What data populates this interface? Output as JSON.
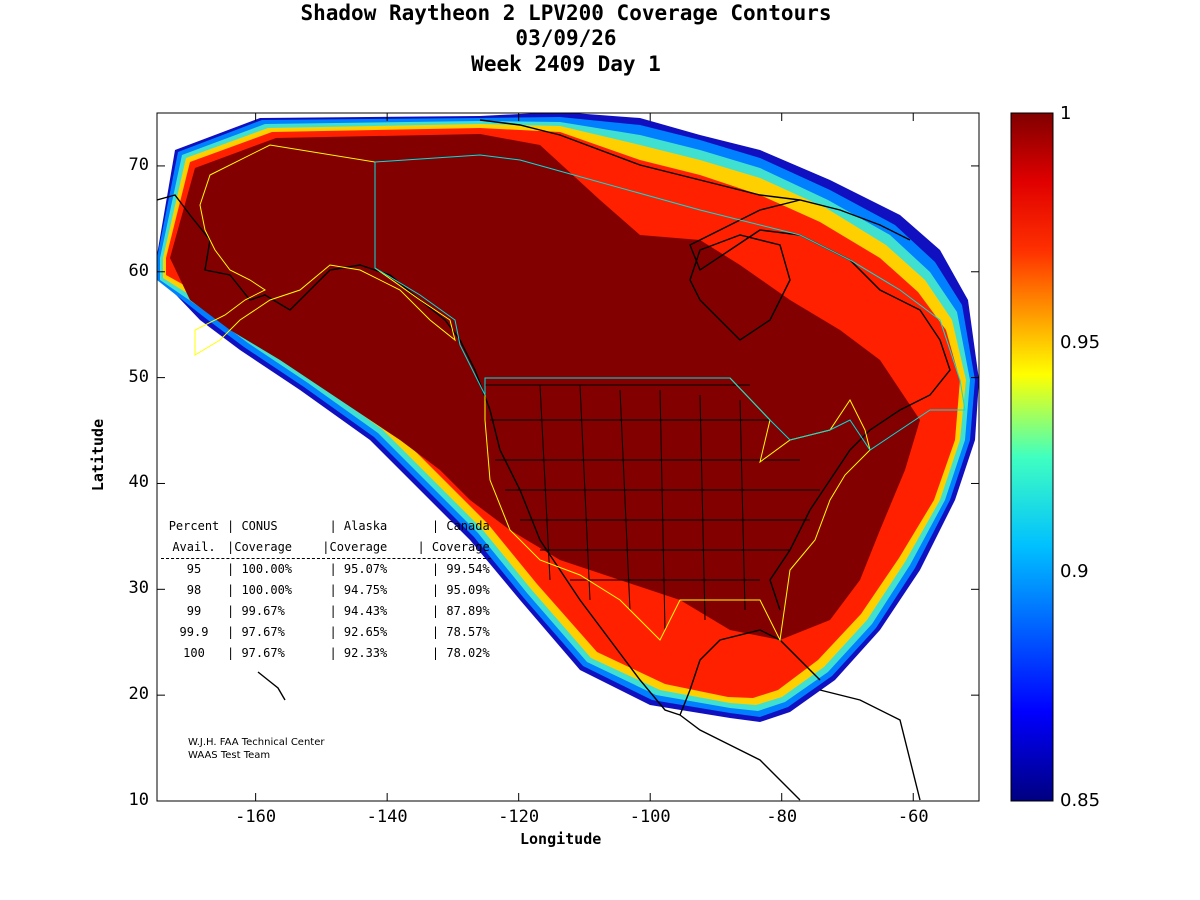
{
  "title": {
    "line1": "Shadow Raytheon 2 LPV200 Coverage Contours",
    "line2": "03/09/26",
    "line3": "Week 2409 Day 1"
  },
  "axes": {
    "xlabel": "Longitude",
    "ylabel": "Latitude",
    "lon_range": [
      -175,
      -50
    ],
    "lat_range": [
      10,
      75
    ],
    "x_ticks": [
      "-160",
      "-140",
      "-120",
      "-100",
      "-80",
      "-60"
    ],
    "y_ticks": [
      "10",
      "20",
      "30",
      "40",
      "50",
      "60",
      "70"
    ]
  },
  "colorbar": {
    "min": 0.85,
    "max": 1,
    "ticks": [
      "1",
      "0.95",
      "0.9",
      "0.85"
    ],
    "colors": [
      "#000080",
      "#0000ff",
      "#00ffff",
      "#ffff00",
      "#ff0000",
      "#800000"
    ]
  },
  "stats_table": {
    "header1": [
      "Percent",
      "CONUS",
      "Alaska",
      "Canada"
    ],
    "header2": [
      "Avail.",
      "Coverage",
      "Coverage",
      "Coverage"
    ],
    "rows": [
      [
        "95",
        "100.00%",
        "95.07%",
        "99.54%"
      ],
      [
        "98",
        "100.00%",
        "94.75%",
        "95.09%"
      ],
      [
        "99",
        "99.67%",
        "94.43%",
        "87.89%"
      ],
      [
        "99.9",
        "97.67%",
        "92.65%",
        "78.57%"
      ],
      [
        "100",
        "97.67%",
        "92.33%",
        "78.02%"
      ]
    ]
  },
  "credit": {
    "line1": "W.J.H. FAA Technical Center",
    "line2": "WAAS Test Team"
  }
}
